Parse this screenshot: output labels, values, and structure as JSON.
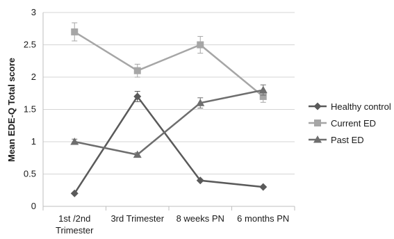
{
  "chart_data": {
    "type": "line",
    "title": "",
    "xlabel": "",
    "ylabel": "Mean EDE-Q Total score",
    "categories": [
      [
        "1st /2nd",
        "Trimester"
      ],
      [
        "3rd Trimester"
      ],
      [
        "8 weeks PN"
      ],
      [
        "6 months PN"
      ]
    ],
    "ylim": [
      0,
      3
    ],
    "yticks": [
      "0",
      "0.5",
      "1",
      "1.5",
      "2",
      "2.5",
      "3"
    ],
    "grid": "horizontal",
    "legend_placement": "right",
    "series": [
      {
        "name": "Healthy control",
        "marker": "diamond",
        "color": "#5a5a5a",
        "values": [
          0.2,
          1.7,
          0.4,
          0.3
        ],
        "errors": [
          0,
          0.08,
          0,
          0
        ]
      },
      {
        "name": "Current ED",
        "marker": "square",
        "color": "#a6a6a6",
        "values": [
          2.7,
          2.1,
          2.5,
          1.7
        ],
        "errors": [
          0.14,
          0.1,
          0.13,
          0.09
        ]
      },
      {
        "name": "Past ED",
        "marker": "triangle",
        "color": "#6e6e6e",
        "values": [
          1.0,
          0.8,
          1.6,
          1.8
        ],
        "errors": [
          0.04,
          0.03,
          0.08,
          0.08
        ]
      }
    ]
  }
}
